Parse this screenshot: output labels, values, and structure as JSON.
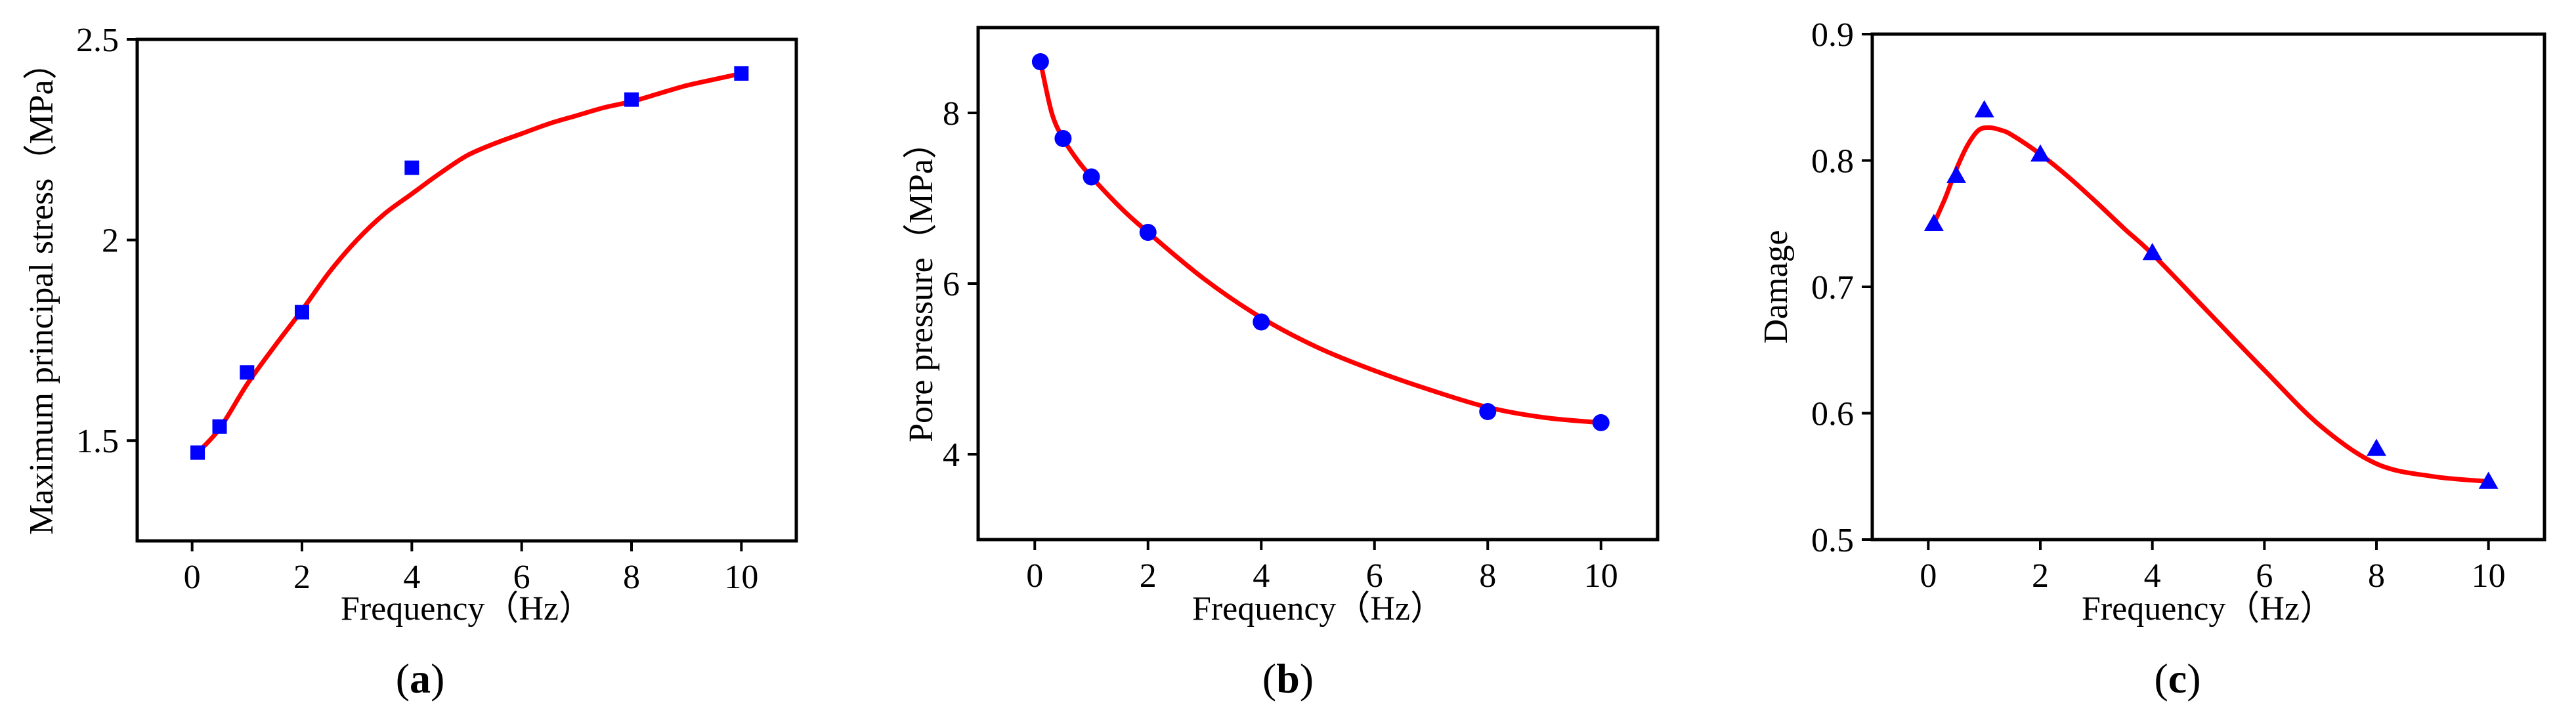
{
  "chart_data": [
    {
      "type": "scatter",
      "marker": "square",
      "panel_label": "a",
      "xlabel": "Frequency（Hz）",
      "ylabel": "Maximum principal stress（MPa）",
      "xlim": [
        -1,
        11
      ],
      "ylim": [
        1.25,
        2.5
      ],
      "xticks": [
        0,
        2,
        4,
        6,
        8,
        10
      ],
      "yticks": [
        1.5,
        2,
        2.5
      ],
      "ytick_labels": [
        "1.5",
        "2",
        "2.5"
      ],
      "x": [
        0.1,
        0.5,
        1,
        2,
        4,
        8,
        10
      ],
      "y": [
        1.47,
        1.535,
        1.67,
        1.82,
        2.18,
        2.35,
        2.415
      ],
      "fit": {
        "x": [
          0.1,
          0.5,
          1,
          1.5,
          2,
          2.5,
          3,
          3.5,
          4,
          4.5,
          5,
          5.5,
          6,
          6.5,
          7,
          7.5,
          8,
          8.5,
          9,
          9.5,
          10
        ],
        "y": [
          1.47,
          1.53,
          1.64,
          1.735,
          1.825,
          1.92,
          2.0,
          2.065,
          2.115,
          2.165,
          2.21,
          2.24,
          2.265,
          2.29,
          2.31,
          2.33,
          2.345,
          2.365,
          2.385,
          2.4,
          2.415
        ]
      },
      "marker_color": "#0000ff",
      "fit_color": "#ff0000"
    },
    {
      "type": "scatter",
      "marker": "circle",
      "panel_label": "b",
      "xlabel": "Frequency（Hz）",
      "ylabel": "Pore pressure（MPa）",
      "xlim": [
        -1,
        11
      ],
      "ylim": [
        3,
        9
      ],
      "xticks": [
        0,
        2,
        4,
        6,
        8,
        10
      ],
      "yticks": [
        4,
        6,
        8
      ],
      "ytick_labels": [
        "4",
        "6",
        "8"
      ],
      "x": [
        0.1,
        0.5,
        1,
        2,
        4,
        8,
        10
      ],
      "y": [
        8.6,
        7.7,
        7.25,
        6.6,
        5.55,
        4.5,
        4.37
      ],
      "fit": {
        "x": [
          0.1,
          0.3,
          0.5,
          0.75,
          1,
          1.5,
          2,
          3,
          4,
          5,
          6,
          7,
          8,
          9,
          10
        ],
        "y": [
          8.6,
          8.0,
          7.7,
          7.45,
          7.25,
          6.9,
          6.6,
          6.05,
          5.6,
          5.25,
          4.98,
          4.75,
          4.55,
          4.43,
          4.37
        ]
      },
      "marker_color": "#0000ff",
      "fit_color": "#ff0000"
    },
    {
      "type": "scatter",
      "marker": "triangle",
      "panel_label": "c",
      "xlabel": "Frequency（Hz）",
      "ylabel": "Damage",
      "xlim": [
        -1,
        11
      ],
      "ylim": [
        0.5,
        0.9
      ],
      "xticks": [
        0,
        2,
        4,
        6,
        8,
        10
      ],
      "yticks": [
        0.5,
        0.6,
        0.7,
        0.8,
        0.9
      ],
      "ytick_labels": [
        "0.5",
        "0.6",
        "0.7",
        "0.8",
        "0.9"
      ],
      "x": [
        0.1,
        0.5,
        1,
        2,
        4,
        8,
        10
      ],
      "y": [
        0.75,
        0.788,
        0.84,
        0.805,
        0.727,
        0.572,
        0.546
      ],
      "fit": {
        "x": [
          0.1,
          0.3,
          0.5,
          0.7,
          0.9,
          1.1,
          1.3,
          1.5,
          2,
          2.5,
          3,
          3.5,
          4,
          5,
          6,
          7,
          8,
          9,
          10
        ],
        "y": [
          0.75,
          0.77,
          0.793,
          0.812,
          0.824,
          0.826,
          0.824,
          0.82,
          0.805,
          0.787,
          0.767,
          0.746,
          0.726,
          0.68,
          0.634,
          0.59,
          0.56,
          0.55,
          0.546
        ]
      },
      "marker_color": "#0000ff",
      "fit_color": "#ff0000"
    }
  ]
}
